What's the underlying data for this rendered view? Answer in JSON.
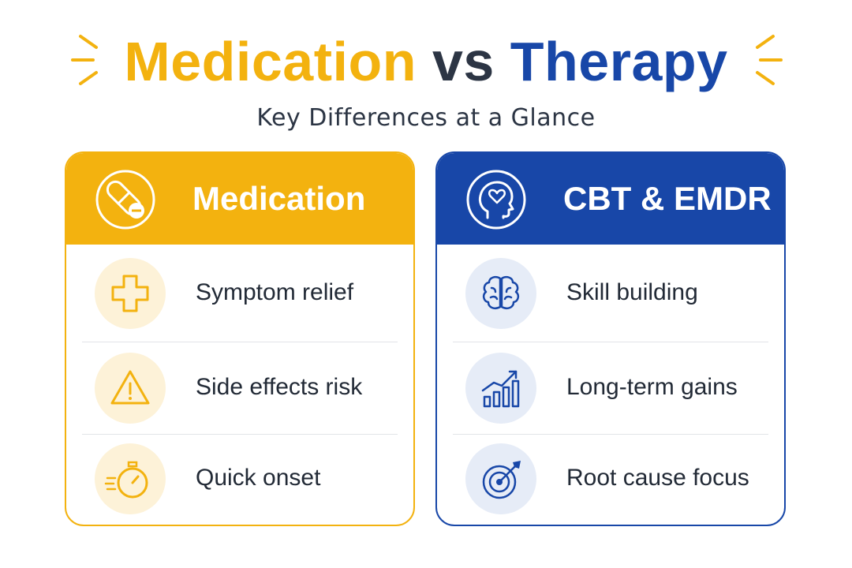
{
  "header": {
    "title_part1": "Medication",
    "title_part2": "vs",
    "title_part3": "Therapy",
    "subtitle": "Key Differences at a Glance"
  },
  "colors": {
    "medication_accent": "#f3b20f",
    "therapy_accent": "#1847a8",
    "text_dark": "#2c3544"
  },
  "medication": {
    "title": "Medication",
    "icon": "pill-icon",
    "items": [
      {
        "label": "Symptom relief",
        "icon": "medical-cross-icon"
      },
      {
        "label": "Side effects risk",
        "icon": "warning-icon"
      },
      {
        "label": "Quick onset",
        "icon": "stopwatch-icon"
      }
    ]
  },
  "therapy": {
    "title": "CBT & EMDR",
    "icon": "head-heart-icon",
    "items": [
      {
        "label": "Skill building",
        "icon": "brain-icon"
      },
      {
        "label": "Long-term gains",
        "icon": "growth-chart-icon"
      },
      {
        "label": "Root cause focus",
        "icon": "target-icon"
      }
    ]
  }
}
